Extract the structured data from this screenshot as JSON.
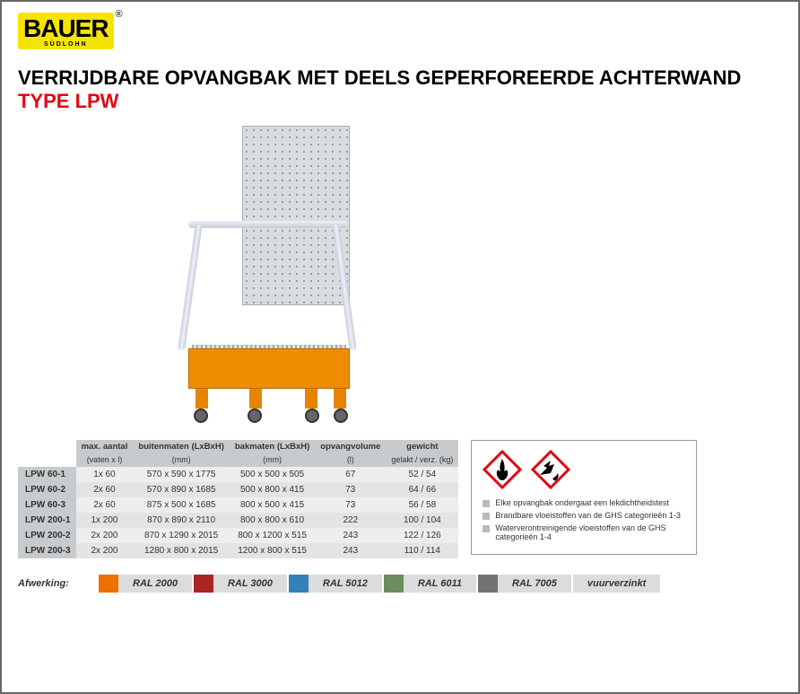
{
  "logo": {
    "main": "BAUER",
    "sub": "SÜDLOHN"
  },
  "title": {
    "main": "VERRIJDBARE OPVANGBAK MET DEELS GEPERFOREERDE ACHTERWAND ",
    "type": "TYPE LPW"
  },
  "table": {
    "headers": {
      "col1": {
        "l1": "max. aantal",
        "l2": "(vaten x l)"
      },
      "col2": {
        "l1": "buitenmaten (LxBxH)",
        "l2": "(mm)"
      },
      "col3": {
        "l1": "bakmaten (LxBxH)",
        "l2": "(mm)"
      },
      "col4": {
        "l1": "opvangvolume",
        "l2": "(l)"
      },
      "col5": {
        "l1": "gewicht",
        "l2": "gelakt / verz. (kg)"
      }
    },
    "rows": [
      {
        "name": "LPW 60-1",
        "c1": "1x 60",
        "c2": "570 x  590 x 1775",
        "c3": "500 x  500 x 505",
        "c4": "67",
        "c5": "52 / 54"
      },
      {
        "name": "LPW 60-2",
        "c1": "2x 60",
        "c2": "570 x  890 x 1685",
        "c3": "500 x  800 x 415",
        "c4": "73",
        "c5": "64 / 66"
      },
      {
        "name": "LPW 60-3",
        "c1": "2x 60",
        "c2": "875 x  500 x 1685",
        "c3": "800 x  500 x 415",
        "c4": "73",
        "c5": "56 / 58"
      },
      {
        "name": "LPW 200-1",
        "c1": "1x 200",
        "c2": "870 x  890 x 2110",
        "c3": "800 x  800 x 610",
        "c4": "222",
        "c5": "100 / 104"
      },
      {
        "name": "LPW 200-2",
        "c1": "2x 200",
        "c2": "870 x 1290 x 2015",
        "c3": "800 x 1200 x 515",
        "c4": "243",
        "c5": "122 / 126"
      },
      {
        "name": "LPW 200-3",
        "c1": "2x 200",
        "c2": "1280 x  800 x 2015",
        "c3": "1200 x  800 x 515",
        "c4": "243",
        "c5": "110 / 114"
      }
    ]
  },
  "hazard": {
    "items": [
      "Elke opvangbak ondergaat een lekdichtheidstest",
      "Brandbare vloeistoffen van de GHS categorieën 1-3",
      "Waterverontreinigende vloeistoffen van de GHS categorieën 1-4"
    ]
  },
  "finish": {
    "label": "Afwerking:",
    "swatches": [
      {
        "name": "RAL 2000",
        "color": "#ed7100"
      },
      {
        "name": "RAL 3000",
        "color": "#ab2524"
      },
      {
        "name": "RAL 5012",
        "color": "#3481b8"
      },
      {
        "name": "RAL 6011",
        "color": "#6c8d5c"
      },
      {
        "name": "RAL 7005",
        "color": "#707372"
      },
      {
        "name": "vuurverzinkt",
        "color": null
      }
    ]
  },
  "colors": {
    "accent_red": "#e30613",
    "logo_bg": "#f4e400",
    "table_header_bg": "#c8cbcd",
    "row_odd": "#eceeef",
    "row_even": "#e2e4e5"
  }
}
